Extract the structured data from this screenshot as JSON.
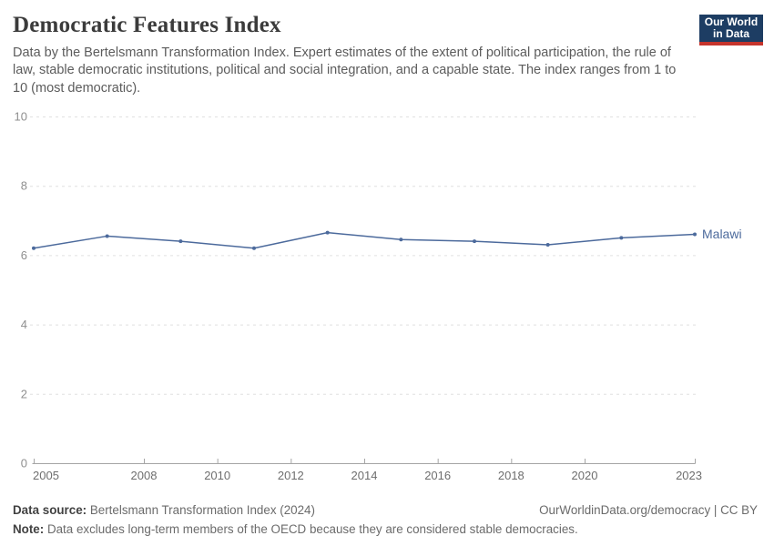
{
  "header": {
    "title": "Democratic Features Index",
    "subtitle": "Data by the Bertelsmann Transformation Index. Expert estimates of the extent of political participation, the rule of law, stable democratic institutions, political and social integration, and a capable state. The index ranges from 1 to 10 (most democratic).",
    "logo": {
      "line1": "Our World",
      "line2": "in Data",
      "bg": "#1d3d63",
      "accent": "#c5342c"
    }
  },
  "chart_data": {
    "type": "line",
    "title": "Democratic Features Index",
    "xlabel": "",
    "ylabel": "",
    "xlim": [
      2005,
      2023
    ],
    "ylim": [
      0,
      10
    ],
    "x_ticks": [
      2005,
      2008,
      2010,
      2012,
      2014,
      2016,
      2018,
      2020,
      2023
    ],
    "y_ticks": [
      0,
      2,
      4,
      6,
      8,
      10
    ],
    "grid": "dashed-horizontal",
    "legend_position": "end-of-line-label",
    "colors": {
      "grid": "#e0e0e0",
      "axis": "#a5a5a5",
      "x_label": "#6e6e6e",
      "y_label": "#8f8f8f"
    },
    "series": [
      {
        "name": "Malawi",
        "color": "#4c6a9c",
        "x": [
          2005,
          2007,
          2009,
          2011,
          2013,
          2015,
          2017,
          2019,
          2021,
          2023
        ],
        "values": [
          6.2,
          6.55,
          6.4,
          6.2,
          6.65,
          6.45,
          6.4,
          6.3,
          6.5,
          6.6
        ]
      }
    ]
  },
  "footer": {
    "source_label": "Data source:",
    "source_text": " Bertelsmann Transformation Index (2024)",
    "rights": "OurWorldinData.org/democracy | CC BY",
    "note_label": "Note:",
    "note_text": " Data excludes long-term members of the OECD because they are considered stable democracies."
  }
}
